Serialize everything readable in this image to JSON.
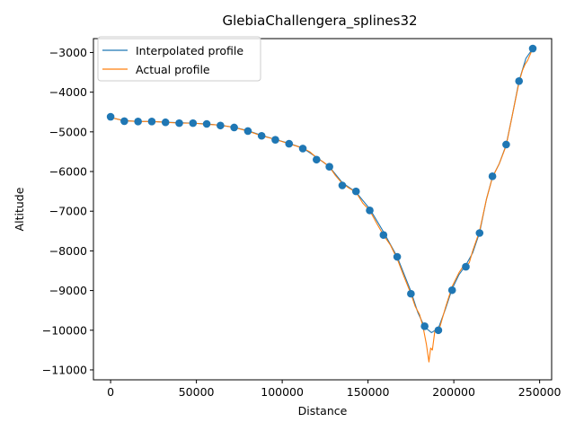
{
  "chart_data": {
    "type": "line",
    "title": "GlebiaChallengera_splines32",
    "xlabel": "Distance",
    "ylabel": "Altitude",
    "xlim": [
      -10000,
      257000
    ],
    "ylim": [
      -11250,
      -2650
    ],
    "xticks": [
      0,
      50000,
      100000,
      150000,
      200000,
      250000
    ],
    "xtick_labels": [
      "0",
      "50000",
      "100000",
      "150000",
      "200000",
      "250000"
    ],
    "yticks": [
      -11000,
      -10000,
      -9000,
      -8000,
      -7000,
      -6000,
      -5000,
      -4000,
      -3000
    ],
    "ytick_labels": [
      "−11000",
      "−10000",
      "−9000",
      "−8000",
      "−7000",
      "−6000",
      "−5000",
      "−4000",
      "−3000"
    ],
    "grid": false,
    "legend_position": "upper left",
    "colors": {
      "interpolated": "#1f77b4",
      "actual": "#ff7f0e",
      "points": "#1f77b4"
    },
    "sample_points": {
      "x": [
        0,
        8000,
        16000,
        24000,
        32000,
        40000,
        48000,
        56000,
        64000,
        72000,
        80000,
        88000,
        96000,
        104000,
        112000,
        120000,
        127500,
        135000,
        143000,
        151000,
        159000,
        167000,
        175000,
        183000,
        191000,
        199000,
        207000,
        215000,
        222500,
        230500,
        238000,
        246000
      ],
      "y": [
        -4620,
        -4730,
        -4740,
        -4740,
        -4760,
        -4780,
        -4780,
        -4800,
        -4840,
        -4890,
        -4980,
        -5100,
        -5200,
        -5300,
        -5420,
        -5700,
        -5880,
        -6350,
        -6500,
        -6980,
        -7600,
        -8150,
        -9080,
        -9900,
        -10000,
        -8990,
        -8400,
        -7550,
        -6120,
        -5320,
        -3720,
        -2900
      ]
    },
    "series": [
      {
        "name": "Interpolated profile",
        "x": [
          0,
          8000,
          16000,
          24000,
          32000,
          40000,
          48000,
          56000,
          64000,
          72000,
          80000,
          88000,
          96000,
          104000,
          112000,
          120000,
          127500,
          135000,
          143000,
          151000,
          159000,
          167000,
          175000,
          179000,
          183000,
          187000,
          191000,
          195000,
          199000,
          203000,
          207000,
          211000,
          215000,
          219000,
          222500,
          226500,
          230500,
          234000,
          238000,
          242000,
          246000
        ],
        "y": [
          -4640,
          -4720,
          -4735,
          -4740,
          -4755,
          -4770,
          -4780,
          -4800,
          -4835,
          -4885,
          -4970,
          -5090,
          -5190,
          -5290,
          -5410,
          -5640,
          -5880,
          -6280,
          -6520,
          -6940,
          -7520,
          -8150,
          -9020,
          -9550,
          -9920,
          -10060,
          -9950,
          -9480,
          -8960,
          -8600,
          -8360,
          -8050,
          -7540,
          -6700,
          -6140,
          -5800,
          -5330,
          -4600,
          -3720,
          -3150,
          -2900
        ]
      },
      {
        "name": "Actual profile",
        "x": [
          0,
          8000,
          16000,
          24000,
          32000,
          40000,
          48000,
          56000,
          64000,
          72000,
          80000,
          88000,
          96000,
          104000,
          112000,
          116000,
          120000,
          124000,
          127500,
          131000,
          135000,
          139000,
          143000,
          147000,
          151000,
          155000,
          159000,
          163000,
          167000,
          171000,
          175000,
          177500,
          180000,
          182000,
          184000,
          185500,
          186500,
          187500,
          189000,
          190500,
          192000,
          195000,
          199000,
          203000,
          205000,
          207000,
          209000,
          211000,
          215000,
          219000,
          222500,
          226500,
          230500,
          234000,
          238000,
          240000,
          241500,
          243000,
          246000
        ],
        "y": [
          -4640,
          -4720,
          -4740,
          -4740,
          -4760,
          -4780,
          -4780,
          -4810,
          -4830,
          -4890,
          -4980,
          -5100,
          -5190,
          -5300,
          -5410,
          -5500,
          -5650,
          -5760,
          -5880,
          -6100,
          -6300,
          -6420,
          -6520,
          -6800,
          -6980,
          -7300,
          -7600,
          -7850,
          -8200,
          -8650,
          -9080,
          -9400,
          -9600,
          -9900,
          -10350,
          -10800,
          -10450,
          -10500,
          -10000,
          -10050,
          -9900,
          -9450,
          -8900,
          -8550,
          -8420,
          -8380,
          -8300,
          -8000,
          -7500,
          -6700,
          -6150,
          -5800,
          -5350,
          -4600,
          -3750,
          -3450,
          -3300,
          -3200,
          -2900
        ]
      }
    ]
  }
}
